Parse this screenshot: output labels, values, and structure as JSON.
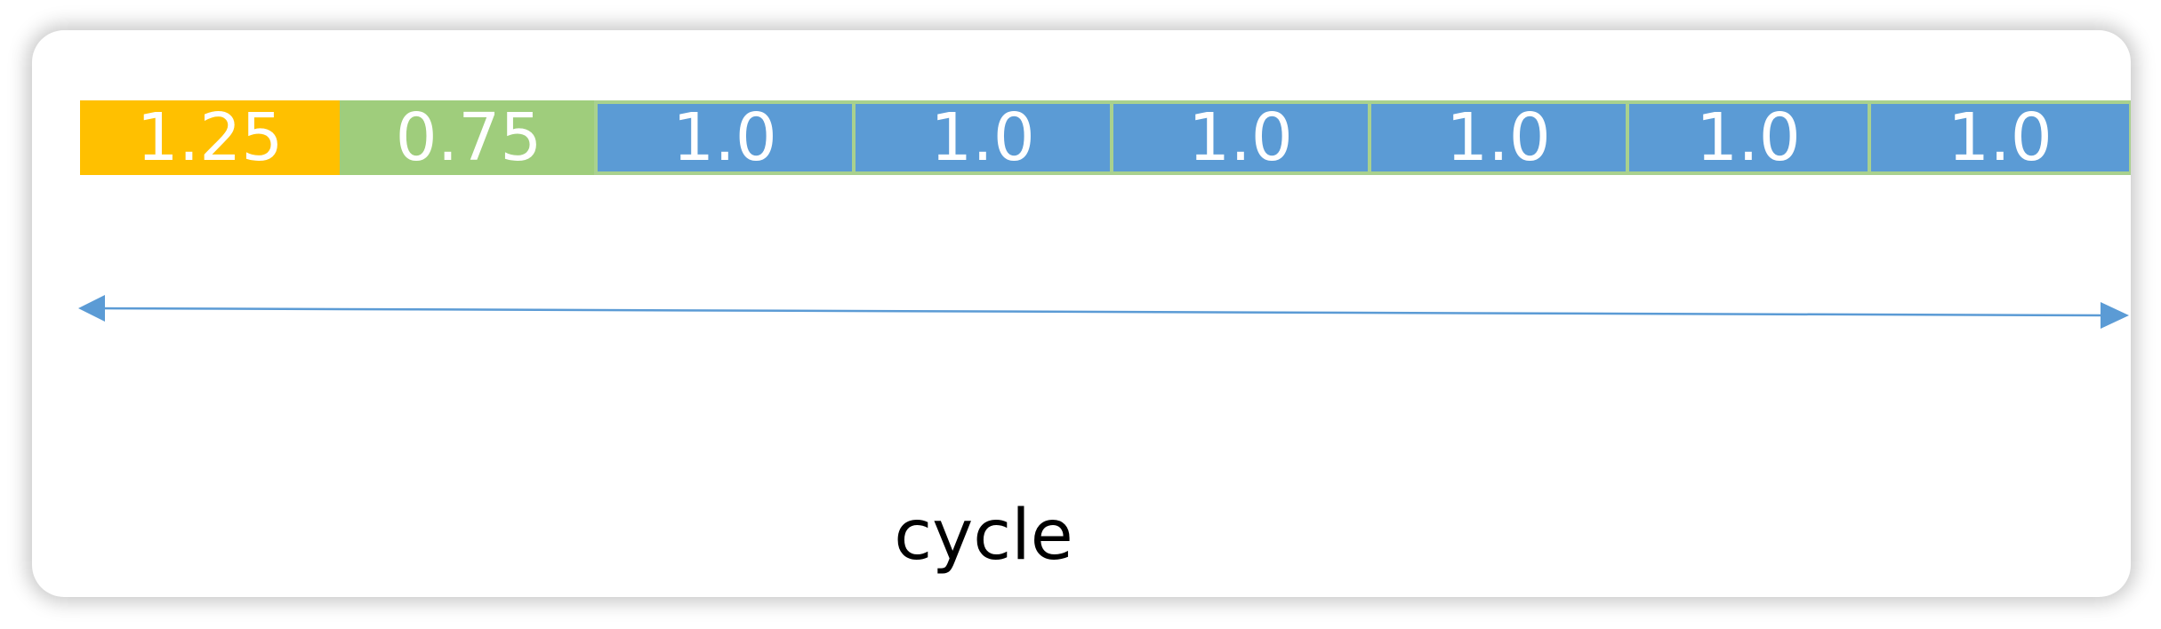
{
  "colors": {
    "orange": "#ffc000",
    "green": "#9fcd7c",
    "blue": "#5b9bd5",
    "outline": "#a9d18e",
    "arrow": "#5b9bd5"
  },
  "segments": [
    {
      "label": "1.25",
      "color": "orange",
      "outlined": false
    },
    {
      "label": "0.75",
      "color": "green",
      "outlined": false
    },
    {
      "label": "1.0",
      "color": "blue",
      "outlined": true
    },
    {
      "label": "1.0",
      "color": "blue",
      "outlined": true
    },
    {
      "label": "1.0",
      "color": "blue",
      "outlined": true
    },
    {
      "label": "1.0",
      "color": "blue",
      "outlined": true
    },
    {
      "label": "1.0",
      "color": "blue",
      "outlined": true
    },
    {
      "label": "1.0",
      "color": "blue",
      "outlined": true
    }
  ],
  "caption": "cycle"
}
